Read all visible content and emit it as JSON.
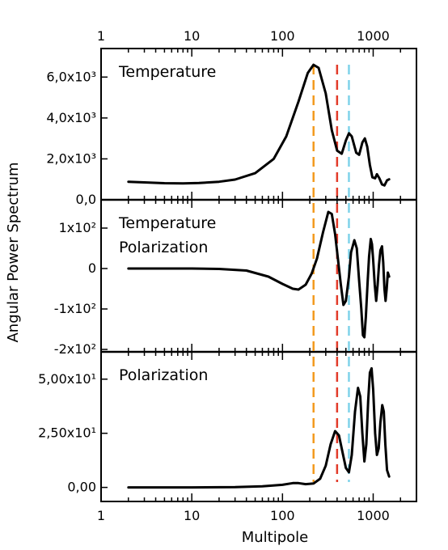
{
  "chart_data": {
    "type": "line",
    "xscale": "log",
    "xlim": [
      1,
      3000
    ],
    "xlabel": "Multipole",
    "ylabel": "Angular Power Spectrum",
    "x_ticks": [
      {
        "value": 1,
        "label": "1"
      },
      {
        "value": 10,
        "label": "10"
      },
      {
        "value": 100,
        "label": "100"
      },
      {
        "value": 1000,
        "label": "1000"
      }
    ],
    "markers": [
      {
        "x": 220,
        "color": "#f39a1e"
      },
      {
        "x": 400,
        "color": "#e23b2a"
      },
      {
        "x": 540,
        "color": "#7fd3ea"
      }
    ],
    "panels": [
      {
        "title_lines": [
          "Temperature"
        ],
        "ylim": [
          0,
          7000
        ],
        "y_ticks": [
          {
            "value": 0,
            "label": "0,0"
          },
          {
            "value": 2000,
            "label": "2,0x10³"
          },
          {
            "value": 4000,
            "label": "4,0x10³"
          },
          {
            "value": 6000,
            "label": "6,0x10³"
          }
        ],
        "series": [
          {
            "points": [
              [
                2,
                880
              ],
              [
                3,
                850
              ],
              [
                5,
                810
              ],
              [
                8,
                800
              ],
              [
                12,
                820
              ],
              [
                20,
                880
              ],
              [
                30,
                990
              ],
              [
                50,
                1300
              ],
              [
                80,
                2000
              ],
              [
                110,
                3100
              ],
              [
                150,
                4800
              ],
              [
                190,
                6200
              ],
              [
                220,
                6600
              ],
              [
                250,
                6450
              ],
              [
                300,
                5200
              ],
              [
                350,
                3400
              ],
              [
                400,
                2400
              ],
              [
                450,
                2250
              ],
              [
                500,
                2900
              ],
              [
                540,
                3250
              ],
              [
                580,
                3100
              ],
              [
                650,
                2300
              ],
              [
                700,
                2200
              ],
              [
                760,
                2800
              ],
              [
                810,
                3000
              ],
              [
                860,
                2600
              ],
              [
                920,
                1700
              ],
              [
                980,
                1100
              ],
              [
                1050,
                1050
              ],
              [
                1100,
                1250
              ],
              [
                1170,
                1050
              ],
              [
                1250,
                750
              ],
              [
                1330,
                700
              ],
              [
                1420,
                950
              ],
              [
                1500,
                1000
              ]
            ]
          }
        ]
      },
      {
        "title_lines": [
          "Temperature",
          "Polarization"
        ],
        "ylim": [
          -200,
          160
        ],
        "y_ticks": [
          {
            "value": -200,
            "label": "-2x10²"
          },
          {
            "value": -100,
            "label": "-1x10²"
          },
          {
            "value": 0,
            "label": "0"
          },
          {
            "value": 100,
            "label": "1x10²"
          }
        ],
        "series": [
          {
            "points": [
              [
                2,
                0
              ],
              [
                5,
                0
              ],
              [
                10,
                0
              ],
              [
                20,
                -1
              ],
              [
                40,
                -5
              ],
              [
                70,
                -20
              ],
              [
                100,
                -38
              ],
              [
                130,
                -50
              ],
              [
                150,
                -52
              ],
              [
                180,
                -40
              ],
              [
                210,
                -12
              ],
              [
                240,
                25
              ],
              [
                280,
                90
              ],
              [
                320,
                140
              ],
              [
                350,
                135
              ],
              [
                380,
                85
              ],
              [
                410,
                20
              ],
              [
                440,
                -40
              ],
              [
                470,
                -90
              ],
              [
                500,
                -80
              ],
              [
                540,
                -20
              ],
              [
                570,
                40
              ],
              [
                620,
                70
              ],
              [
                660,
                50
              ],
              [
                700,
                -30
              ],
              [
                740,
                -100
              ],
              [
                770,
                -165
              ],
              [
                800,
                -170
              ],
              [
                830,
                -120
              ],
              [
                870,
                -30
              ],
              [
                900,
                30
              ],
              [
                940,
                73
              ],
              [
                970,
                60
              ],
              [
                1000,
                20
              ],
              [
                1040,
                -40
              ],
              [
                1080,
                -80
              ],
              [
                1120,
                -40
              ],
              [
                1160,
                10
              ],
              [
                1200,
                45
              ],
              [
                1250,
                55
              ],
              [
                1290,
                15
              ],
              [
                1330,
                -50
              ],
              [
                1370,
                -80
              ],
              [
                1410,
                -50
              ],
              [
                1450,
                -10
              ],
              [
                1500,
                -20
              ]
            ]
          }
        ]
      },
      {
        "title_lines": [
          "Polarization"
        ],
        "ylim": [
          -5,
          60
        ],
        "y_ticks": [
          {
            "value": 0,
            "label": "0,00"
          },
          {
            "value": 25,
            "label": "2,50x10¹"
          },
          {
            "value": 50,
            "label": "5,00x10¹"
          }
        ],
        "series": [
          {
            "points": [
              [
                2,
                0
              ],
              [
                10,
                0
              ],
              [
                30,
                0.1
              ],
              [
                60,
                0.5
              ],
              [
                100,
                1.2
              ],
              [
                130,
                2
              ],
              [
                150,
                2
              ],
              [
                180,
                1.5
              ],
              [
                220,
                1.8
              ],
              [
                260,
                4
              ],
              [
                300,
                10
              ],
              [
                340,
                20
              ],
              [
                380,
                26
              ],
              [
                420,
                24
              ],
              [
                460,
                16
              ],
              [
                500,
                9
              ],
              [
                540,
                7
              ],
              [
                580,
                15
              ],
              [
                630,
                35
              ],
              [
                680,
                46
              ],
              [
                720,
                42
              ],
              [
                760,
                25
              ],
              [
                800,
                12
              ],
              [
                840,
                20
              ],
              [
                880,
                40
              ],
              [
                920,
                53
              ],
              [
                960,
                55
              ],
              [
                1000,
                45
              ],
              [
                1050,
                25
              ],
              [
                1100,
                15
              ],
              [
                1150,
                18
              ],
              [
                1200,
                30
              ],
              [
                1260,
                38
              ],
              [
                1310,
                35
              ],
              [
                1360,
                20
              ],
              [
                1420,
                8
              ],
              [
                1500,
                5
              ]
            ]
          }
        ]
      }
    ]
  }
}
